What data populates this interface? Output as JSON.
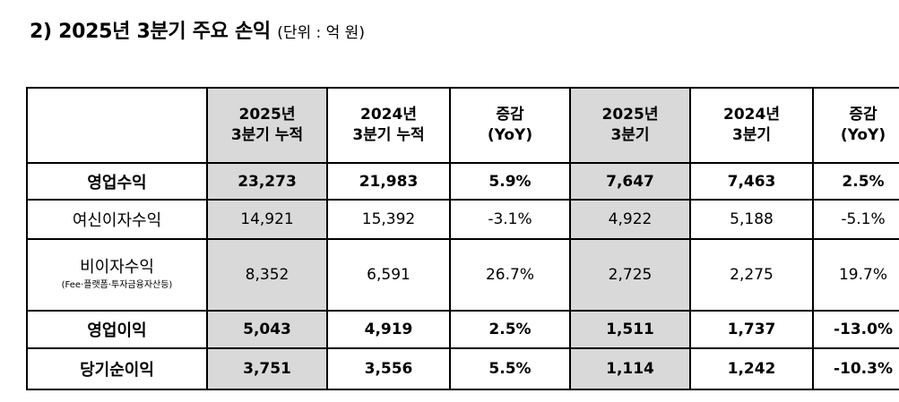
{
  "title": {
    "main": "2) 2025년 3분기 주요 손익",
    "unit": "(단위 : 억 원)"
  },
  "table": {
    "headers": [
      {
        "line1": "",
        "line2": ""
      },
      {
        "line1": "2025년",
        "line2": "3분기 누적"
      },
      {
        "line1": "2024년",
        "line2": "3분기 누적"
      },
      {
        "line1": "증감",
        "line2": "(YoY)"
      },
      {
        "line1": "2025년",
        "line2": "3분기"
      },
      {
        "line1": "2024년",
        "line2": "3분기"
      },
      {
        "line1": "증감",
        "line2": "(YoY)"
      }
    ],
    "rows": [
      {
        "label": "영업수익",
        "sublabel": "",
        "values": [
          "23,273",
          "21,983",
          "5.9%",
          "7,647",
          "7,463",
          "2.5%"
        ]
      },
      {
        "label": "여신이자수익",
        "sublabel": "",
        "values": [
          "14,921",
          "15,392",
          "-3.1%",
          "4,922",
          "5,188",
          "-5.1%"
        ]
      },
      {
        "label": "비이자수익",
        "sublabel": "(Fee·플랫폼·투자금융자산등)",
        "values": [
          "8,352",
          "6,591",
          "26.7%",
          "2,725",
          "2,275",
          "19.7%"
        ]
      },
      {
        "label": "영업이익",
        "sublabel": "",
        "values": [
          "5,043",
          "4,919",
          "2.5%",
          "1,511",
          "1,737",
          "-13.0%"
        ]
      },
      {
        "label": "당기순이익",
        "sublabel": "",
        "values": [
          "3,751",
          "3,556",
          "5.5%",
          "1,114",
          "1,242",
          "-10.3%"
        ]
      }
    ]
  }
}
